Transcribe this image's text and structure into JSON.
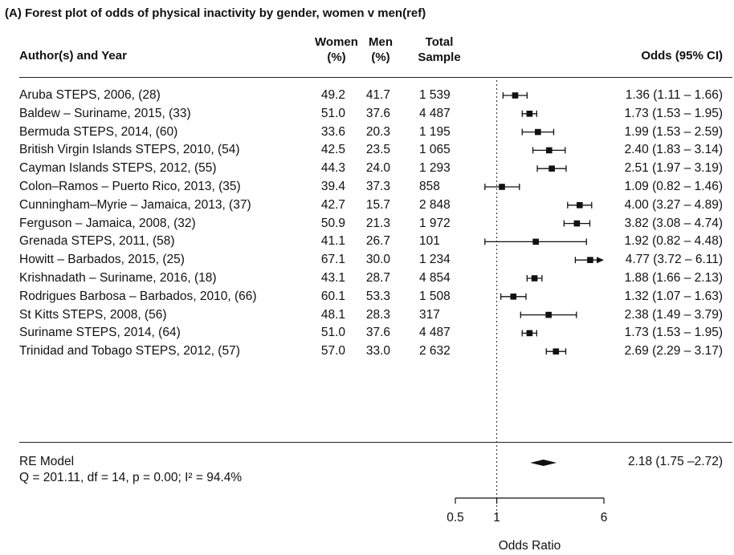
{
  "title": "(A) Forest plot of odds of physical inactivity by gender, women v men(ref)",
  "headers": {
    "author": "Author(s) and Year",
    "women": [
      "Women",
      "(%)"
    ],
    "men": [
      "Men",
      "(%)"
    ],
    "total": [
      "Total",
      "Sample"
    ],
    "odds": "Odds (95% CI)"
  },
  "rows": [
    {
      "study": "Aruba STEPS, 2006, (28)",
      "women": "49.2",
      "men": "41.7",
      "total": "1 539",
      "ci_text": "1.36 (1.11 – 1.66)"
    },
    {
      "study": "Baldew – Suriname, 2015, (33)",
      "women": "51.0",
      "men": "37.6",
      "total": "4 487",
      "ci_text": "1.73 (1.53 – 1.95)"
    },
    {
      "study": "Bermuda STEPS, 2014, (60)",
      "women": "33.6",
      "men": "20.3",
      "total": "1 195",
      "ci_text": "1.99 (1.53 – 2.59)"
    },
    {
      "study": "British Virgin Islands STEPS, 2010, (54)",
      "women": "42.5",
      "men": "23.5",
      "total": "1 065",
      "ci_text": "2.40 (1.83 – 3.14)"
    },
    {
      "study": "Cayman Islands STEPS, 2012, (55)",
      "women": "44.3",
      "men": "24.0",
      "total": "1 293",
      "ci_text": "2.51 (1.97 – 3.19)"
    },
    {
      "study": "Colon–Ramos – Puerto Rico, 2013, (35)",
      "women": "39.4",
      "men": "37.3",
      "total": "858",
      "ci_text": "1.09 (0.82 – 1.46)"
    },
    {
      "study": "Cunningham–Myrie – Jamaica, 2013, (37)",
      "women": "42.7",
      "men": "15.7",
      "total": "2 848",
      "ci_text": "4.00 (3.27 – 4.89)"
    },
    {
      "study": "Ferguson – Jamaica, 2008, (32)",
      "women": "50.9",
      "men": "21.3",
      "total": "1 972",
      "ci_text": "3.82 (3.08 – 4.74)"
    },
    {
      "study": "Grenada STEPS, 2011, (58)",
      "women": "41.1",
      "men": "26.7",
      "total": "101",
      "ci_text": "1.92 (0.82 – 4.48)"
    },
    {
      "study": "Howitt – Barbados, 2015, (25)",
      "women": "67.1",
      "men": "30.0",
      "total": "1 234",
      "ci_text": "4.77 (3.72 – 6.11)"
    },
    {
      "study": "Krishnadath – Suriname, 2016, (18)",
      "women": "43.1",
      "men": "28.7",
      "total": "4 854",
      "ci_text": "1.88 (1.66 – 2.13)"
    },
    {
      "study": "Rodrigues Barbosa – Barbados, 2010, (66)",
      "women": "60.1",
      "men": "53.3",
      "total": "1 508",
      "ci_text": "1.32 (1.07 – 1.63)"
    },
    {
      "study": "St Kitts STEPS, 2008, (56)",
      "women": "48.1",
      "men": "28.3",
      "total": "317",
      "ci_text": "2.38 (1.49 – 3.79)"
    },
    {
      "study": "Suriname STEPS, 2014, (64)",
      "women": "51.0",
      "men": "37.6",
      "total": "4 487",
      "ci_text": "1.73 (1.53 – 1.95)"
    },
    {
      "study": "Trinidad and Tobago STEPS, 2012, (57)",
      "women": "57.0",
      "men": "33.0",
      "total": "2 632",
      "ci_text": "2.69 (2.29 – 3.17)"
    }
  ],
  "re_model": {
    "label": "RE Model",
    "stats": "Q = 201.11, df = 14, p = 0.00; I² = 94.4%",
    "ci_text": "2.18 (1.75 –2.72)"
  },
  "chart_data": {
    "type": "forest",
    "title": "(A) Forest plot of odds of physical inactivity by gender, women v men(ref)",
    "xlabel": "Odds Ratio",
    "x_scale": "log",
    "xlim": [
      0.5,
      6
    ],
    "x_ticks": [
      "0.5",
      "1",
      "6"
    ],
    "reference_line": 1,
    "studies": [
      {
        "name": "Aruba STEPS, 2006, (28)",
        "or": 1.36,
        "lower": 1.11,
        "upper": 1.66
      },
      {
        "name": "Baldew – Suriname, 2015, (33)",
        "or": 1.73,
        "lower": 1.53,
        "upper": 1.95
      },
      {
        "name": "Bermuda STEPS, 2014, (60)",
        "or": 1.99,
        "lower": 1.53,
        "upper": 2.59
      },
      {
        "name": "British Virgin Islands STEPS, 2010, (54)",
        "or": 2.4,
        "lower": 1.83,
        "upper": 3.14
      },
      {
        "name": "Cayman Islands STEPS, 2012, (55)",
        "or": 2.51,
        "lower": 1.97,
        "upper": 3.19
      },
      {
        "name": "Colon–Ramos – Puerto Rico, 2013, (35)",
        "or": 1.09,
        "lower": 0.82,
        "upper": 1.46
      },
      {
        "name": "Cunningham–Myrie – Jamaica, 2013, (37)",
        "or": 4.0,
        "lower": 3.27,
        "upper": 4.89
      },
      {
        "name": "Ferguson – Jamaica, 2008, (32)",
        "or": 3.82,
        "lower": 3.08,
        "upper": 4.74
      },
      {
        "name": "Grenada STEPS, 2011, (58)",
        "or": 1.92,
        "lower": 0.82,
        "upper": 4.48
      },
      {
        "name": "Howitt – Barbados, 2015, (25)",
        "or": 4.77,
        "lower": 3.72,
        "upper": 6.11
      },
      {
        "name": "Krishnadath – Suriname, 2016, (18)",
        "or": 1.88,
        "lower": 1.66,
        "upper": 2.13
      },
      {
        "name": "Rodrigues Barbosa – Barbados, 2010, (66)",
        "or": 1.32,
        "lower": 1.07,
        "upper": 1.63
      },
      {
        "name": "St Kitts STEPS, 2008, (56)",
        "or": 2.38,
        "lower": 1.49,
        "upper": 3.79
      },
      {
        "name": "Suriname STEPS, 2014, (64)",
        "or": 1.73,
        "lower": 1.53,
        "upper": 1.95
      },
      {
        "name": "Trinidad and Tobago STEPS, 2012, (57)",
        "or": 2.69,
        "lower": 2.29,
        "upper": 3.17
      }
    ],
    "pooled": {
      "name": "RE Model",
      "or": 2.18,
      "lower": 1.75,
      "upper": 2.72
    }
  }
}
